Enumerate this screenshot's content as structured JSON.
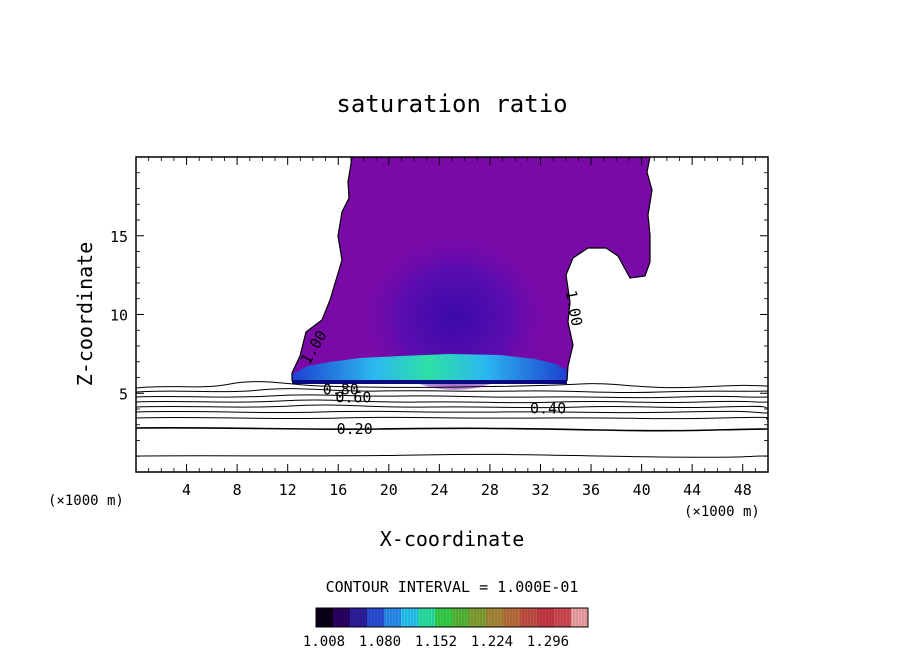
{
  "chart_data": {
    "type": "contour",
    "title": "saturation ratio",
    "xlabel": "X-coordinate",
    "ylabel": "Z-coordinate",
    "x_unit_label": "(×1000 m)",
    "x_unit_label_right": "(×1000 m)",
    "xlim": [
      0,
      50
    ],
    "ylim": [
      0,
      20
    ],
    "x_ticks": [
      4,
      8,
      12,
      16,
      20,
      24,
      28,
      32,
      36,
      40,
      44,
      48
    ],
    "y_ticks": [
      5,
      10,
      15
    ],
    "contour_labels": [
      {
        "text": "1.00",
        "x": 14.1,
        "z": 7.9,
        "rotate": -60
      },
      {
        "text": "1.00",
        "x": 34.6,
        "z": 10.4,
        "rotate": 80
      },
      {
        "text": "0.80",
        "x": 16.2,
        "z": 5.2,
        "rotate": 0
      },
      {
        "text": "0.60",
        "x": 17.2,
        "z": 4.7,
        "rotate": 0
      },
      {
        "text": "0.40",
        "x": 32.6,
        "z": 4.0,
        "rotate": 0
      },
      {
        "text": "0.20",
        "x": 17.3,
        "z": 2.7,
        "rotate": 0
      }
    ],
    "contour_interval_text": "CONTOUR INTERVAL = 1.000E-01",
    "colorbar": {
      "ticks": [
        "1.008",
        "1.080",
        "1.152",
        "1.224",
        "1.296"
      ],
      "colors": [
        "#0c0018",
        "#2a0063",
        "#2e1f9e",
        "#2b4fd8",
        "#2b8ef0",
        "#2bc6f2",
        "#2de0a6",
        "#38d04a",
        "#57b83a",
        "#86a236",
        "#a88a3a",
        "#bb6f3e",
        "#c55044",
        "#c83c46",
        "#d24a52",
        "#f0a4a8"
      ]
    }
  }
}
